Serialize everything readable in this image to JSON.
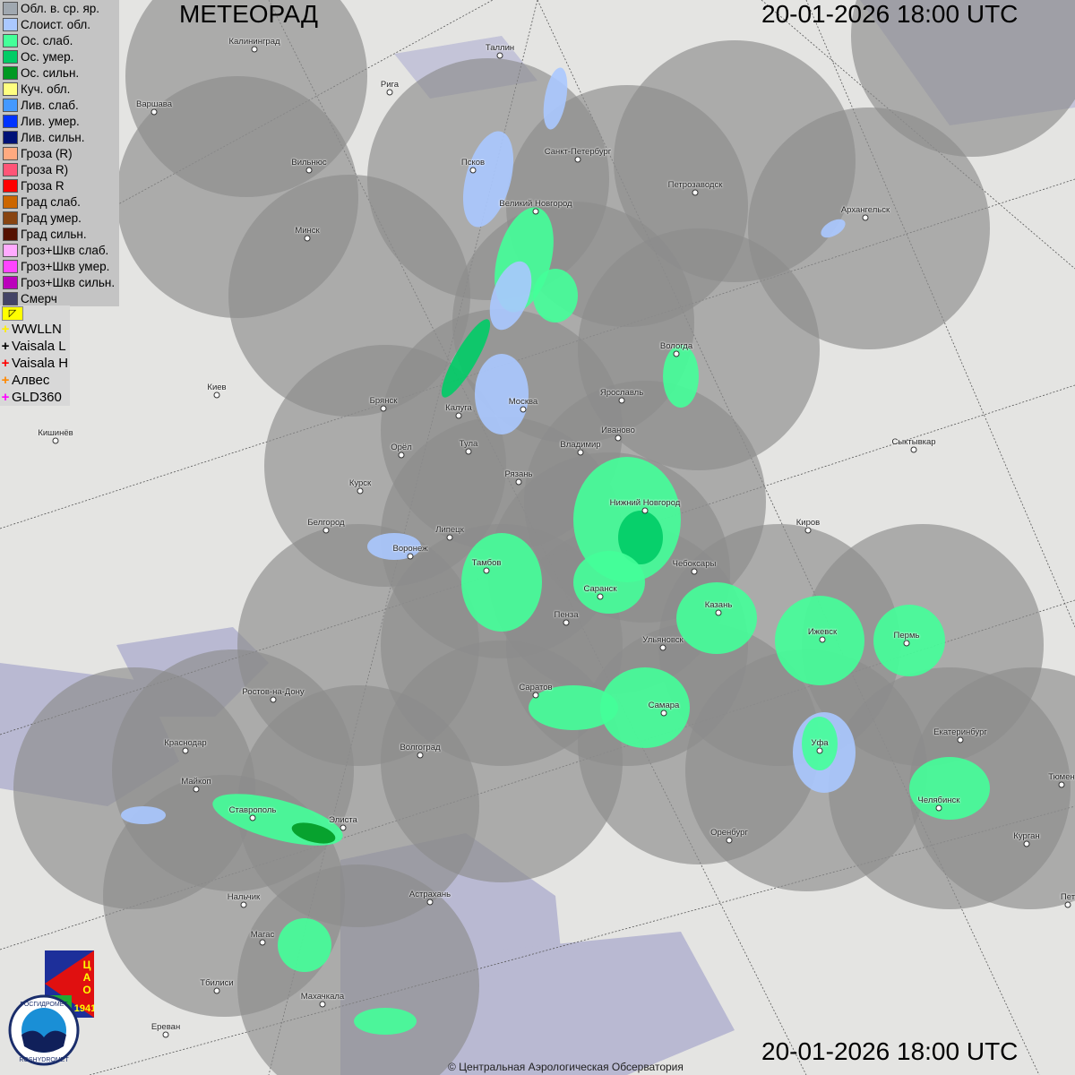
{
  "header": {
    "title": "МЕТЕОРАД",
    "datetime": "20-01-2026  18:00 UTC"
  },
  "footer": {
    "datetime": "20-01-2026  18:00 UTC",
    "copyright": "© Центральная Аэрологическая Обсерватория"
  },
  "legend": [
    {
      "label": "Обл. в. ср. яр.",
      "color": "#a0a8b0"
    },
    {
      "label": "Слоист. обл.",
      "color": "#aac8ff"
    },
    {
      "label": "Ос. слаб.",
      "color": "#44ff99"
    },
    {
      "label": "Ос. умер.",
      "color": "#00cc66"
    },
    {
      "label": "Ос. сильн.",
      "color": "#009922"
    },
    {
      "label": "Куч. обл.",
      "color": "#ffff80"
    },
    {
      "label": "Лив. слаб.",
      "color": "#4499ff"
    },
    {
      "label": "Лив. умер.",
      "color": "#0033ff"
    },
    {
      "label": "Лив. сильн.",
      "color": "#001177"
    },
    {
      "label": "Гроза (R)",
      "color": "#ffaa80"
    },
    {
      "label": "Гроза R)",
      "color": "#ff5577"
    },
    {
      "label": "Гроза R",
      "color": "#ff0000"
    },
    {
      "label": "Град слаб.",
      "color": "#cc6600"
    },
    {
      "label": "Град умер.",
      "color": "#884411"
    },
    {
      "label": "Град сильн.",
      "color": "#551100"
    },
    {
      "label": "Гроз+Шкв слаб.",
      "color": "#ffaaff"
    },
    {
      "label": "Гроз+Шкв умер.",
      "color": "#ff44ff"
    },
    {
      "label": "Гроз+Шкв сильн.",
      "color": "#bb00bb"
    },
    {
      "label": "Смерч",
      "color": "#444466"
    }
  ],
  "lightning": [
    {
      "label": "WWLLN",
      "color": "#ffee00"
    },
    {
      "label": "Vaisala L",
      "color": "#000000"
    },
    {
      "label": "Vaisala H",
      "color": "#ff0000"
    },
    {
      "label": "Алвес",
      "color": "#ff8800"
    },
    {
      "label": "GLD360",
      "color": "#ff00ff"
    }
  ],
  "logos": {
    "cao": "ЦАО 1941",
    "roshydromet": "РОСГИДРОМЕТ ROSHYDROMET"
  },
  "cities": [
    "Калининград",
    "Таллин",
    "Рига",
    "Варшава",
    "Вильнюс",
    "Псков",
    "Санкт-Петербург",
    "Петрозаводск",
    "Архангельск",
    "Великий Новгород",
    "Минск",
    "Вологда",
    "Ярославль",
    "Киев",
    "Брянск",
    "Калуга",
    "Москва",
    "Иваново",
    "Кишинёв",
    "Орёл",
    "Тула",
    "Владимир",
    "Сыктывкар",
    "Рязань",
    "Курск",
    "Нижний Новгород",
    "Киров",
    "Белгород",
    "Липецк",
    "Воронеж",
    "Тамбов",
    "Чебоксары",
    "Саранск",
    "Казань",
    "Пенза",
    "Ижевск",
    "Пермь",
    "Ульяновск",
    "Ростов-на-Дону",
    "Саратов",
    "Самара",
    "Екатеринбург",
    "Краснодар",
    "Уфа",
    "Волгоград",
    "Майкоп",
    "Тюмен",
    "Челябинск",
    "Ставрополь",
    "Элиста",
    "Оренбург",
    "Курган",
    "Астрахань",
    "Нальчик",
    "Пет",
    "Магас",
    "Тбилиси",
    "Махачкала",
    "Ереван"
  ]
}
